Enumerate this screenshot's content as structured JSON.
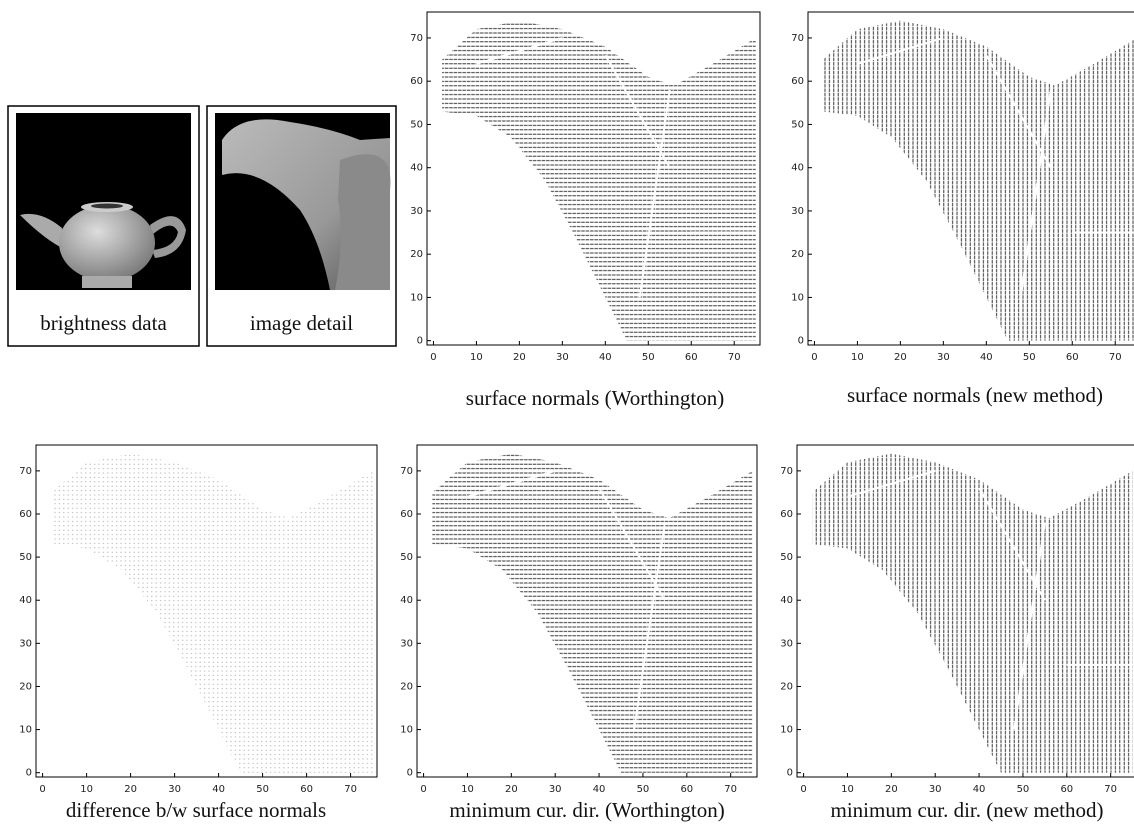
{
  "figure": {
    "images": [
      {
        "caption": "brightness data"
      },
      {
        "caption": "image detail"
      }
    ],
    "plots": [
      {
        "caption": "surface normals (Worthington)",
        "xlim": [
          -1.5,
          76
        ],
        "ylim": [
          -1,
          76
        ],
        "xticks": [
          0,
          10,
          20,
          30,
          40,
          50,
          60,
          70
        ],
        "yticks": [
          0,
          10,
          20,
          30,
          40,
          50,
          60,
          70
        ]
      },
      {
        "caption": "surface normals (new method)",
        "xlim": [
          -1.5,
          76
        ],
        "ylim": [
          -1,
          76
        ],
        "xticks": [
          0,
          10,
          20,
          30,
          40,
          50,
          60,
          70
        ],
        "yticks": [
          0,
          10,
          20,
          30,
          40,
          50,
          60,
          70
        ]
      },
      {
        "caption": "difference b/w surface normals",
        "xlim": [
          -1.5,
          76
        ],
        "ylim": [
          -1,
          76
        ],
        "xticks": [
          0,
          10,
          20,
          30,
          40,
          50,
          60,
          70
        ],
        "yticks": [
          0,
          10,
          20,
          30,
          40,
          50,
          60,
          70
        ]
      },
      {
        "caption": "minimum cur. dir. (Worthington)",
        "xlim": [
          -1.5,
          76
        ],
        "ylim": [
          -1,
          76
        ],
        "xticks": [
          0,
          10,
          20,
          30,
          40,
          50,
          60,
          70
        ],
        "yticks": [
          0,
          10,
          20,
          30,
          40,
          50,
          60,
          70
        ]
      },
      {
        "caption": "minimum cur. dir. (new method)",
        "xlim": [
          -1.5,
          76
        ],
        "ylim": [
          -1,
          76
        ],
        "xticks": [
          0,
          10,
          20,
          30,
          40,
          50,
          60,
          70
        ],
        "yticks": [
          0,
          10,
          20,
          30,
          40,
          50,
          60,
          70
        ]
      }
    ]
  }
}
